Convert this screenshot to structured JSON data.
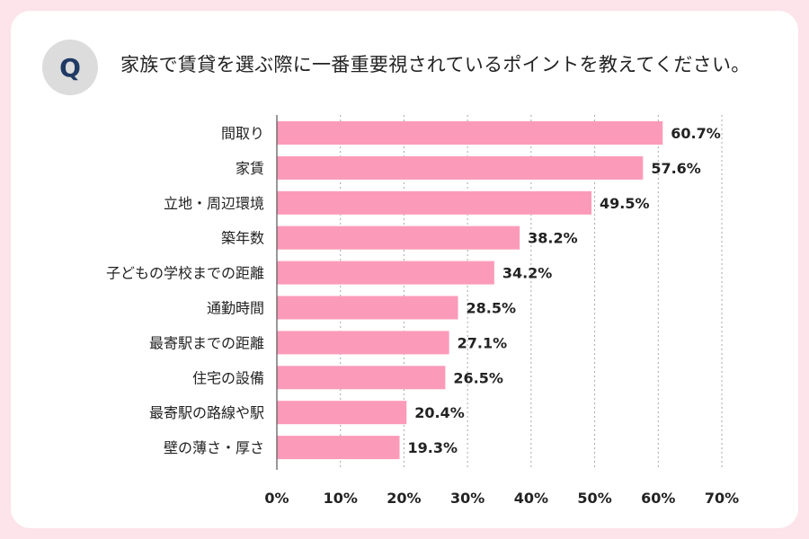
{
  "question_badge": "Q",
  "question_text": "家族で賃貸を選ぶ際に一番重要視されているポイントを教えてください。",
  "colors": {
    "bar": "#fc9bb9",
    "frame": "#fde3ea",
    "badge_bg": "#dcdcdc",
    "badge_text": "#1f3a63",
    "grid": "#a8a8a8"
  },
  "chart_data": {
    "type": "bar",
    "orientation": "horizontal",
    "title": "家族で賃貸を選ぶ際に一番重要視されているポイントを教えてください。",
    "categories": [
      "間取り",
      "家賃",
      "立地・周辺環境",
      "築年数",
      "子どもの学校までの距離",
      "通勤時間",
      "最寄駅までの距離",
      "住宅の設備",
      "最寄駅の路線や駅",
      "壁の薄さ・厚さ"
    ],
    "values": [
      60.7,
      57.6,
      49.5,
      38.2,
      34.2,
      28.5,
      27.1,
      26.5,
      20.4,
      19.3
    ],
    "value_labels": [
      "60.7%",
      "57.6%",
      "49.5%",
      "38.2%",
      "34.2%",
      "28.5%",
      "27.1%",
      "26.5%",
      "20.4%",
      "19.3%"
    ],
    "xlim": [
      0,
      70
    ],
    "xticks": [
      0,
      10,
      20,
      30,
      40,
      50,
      60,
      70
    ],
    "xtick_labels": [
      "0%",
      "10%",
      "20%",
      "30%",
      "40%",
      "50%",
      "60%",
      "70%"
    ],
    "xlabel": "",
    "ylabel": "",
    "grid": true,
    "legend": "none"
  }
}
